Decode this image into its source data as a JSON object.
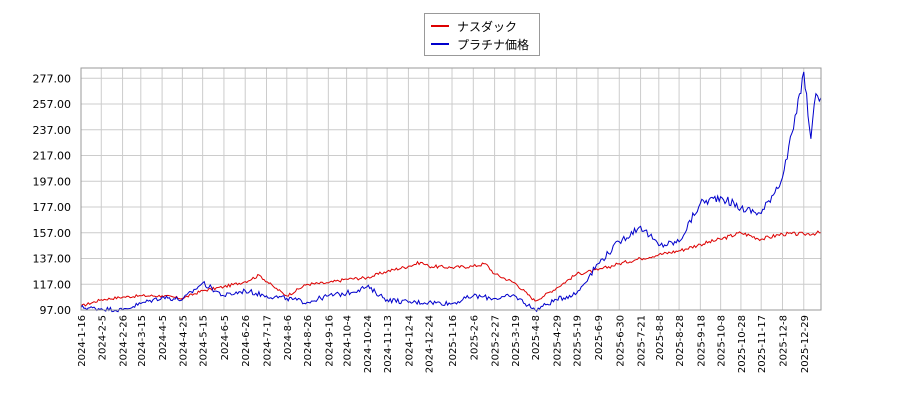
{
  "chart_data": {
    "type": "line",
    "y_ticks": [
      "97.00",
      "117.00",
      "137.00",
      "157.00",
      "177.00",
      "197.00",
      "217.00",
      "237.00",
      "257.00",
      "277.00"
    ],
    "ylim": [
      97,
      285
    ],
    "x_ticks": [
      "2024-1-16",
      "2024-2-5",
      "2024-2-26",
      "2024-3-15",
      "2024-4-5",
      "2024-4-25",
      "2024-5-15",
      "2024-6-5",
      "2024-6-26",
      "2024-7-17",
      "2024-8-6",
      "2024-8-26",
      "2024-9-16",
      "2024-10-4",
      "2024-10-24",
      "2024-11-13",
      "2024-12-4",
      "2024-12-24",
      "2025-1-16",
      "2025-2-6",
      "2025-2-27",
      "2025-3-19",
      "2025-4-8",
      "2025-4-29",
      "2025-5-19",
      "2025-6-9",
      "2025-6-30",
      "2025-7-21",
      "2025-8-8",
      "2025-8-28",
      "2025-9-18",
      "2025-10-8",
      "2025-10-28",
      "2025-11-17",
      "2025-12-8",
      "2025-12-29"
    ],
    "x_range": [
      "2024-1-16",
      "2026-1-15"
    ],
    "grid": true,
    "legend_position": "top-center",
    "series": [
      {
        "name": "ナスダック",
        "color": "#dd0000",
        "points": [
          [
            "2024-1-16",
            100
          ],
          [
            "2024-2-5",
            105
          ],
          [
            "2024-2-26",
            107
          ],
          [
            "2024-3-15",
            108
          ],
          [
            "2024-4-5",
            108
          ],
          [
            "2024-4-25",
            106
          ],
          [
            "2024-5-15",
            112
          ],
          [
            "2024-6-5",
            115
          ],
          [
            "2024-6-26",
            119
          ],
          [
            "2024-7-10",
            124
          ],
          [
            "2024-7-24",
            115
          ],
          [
            "2024-8-6",
            108
          ],
          [
            "2024-8-26",
            117
          ],
          [
            "2024-9-16",
            118
          ],
          [
            "2024-10-4",
            121
          ],
          [
            "2024-10-24",
            122
          ],
          [
            "2024-11-13",
            127
          ],
          [
            "2024-12-4",
            131
          ],
          [
            "2024-12-16",
            134
          ],
          [
            "2024-12-24",
            131
          ],
          [
            "2025-1-16",
            130
          ],
          [
            "2025-2-6",
            131
          ],
          [
            "2025-2-18",
            133
          ],
          [
            "2025-2-27",
            125
          ],
          [
            "2025-3-19",
            118
          ],
          [
            "2025-4-8",
            104
          ],
          [
            "2025-4-29",
            114
          ],
          [
            "2025-5-19",
            125
          ],
          [
            "2025-6-9",
            128
          ],
          [
            "2025-6-30",
            133
          ],
          [
            "2025-7-21",
            137
          ],
          [
            "2025-8-8",
            140
          ],
          [
            "2025-8-28",
            143
          ],
          [
            "2025-9-18",
            148
          ],
          [
            "2025-10-8",
            152
          ],
          [
            "2025-10-28",
            157
          ],
          [
            "2025-11-17",
            152
          ],
          [
            "2025-12-8",
            156
          ],
          [
            "2025-12-29",
            156
          ],
          [
            "2026-1-15",
            157
          ]
        ]
      },
      {
        "name": "プラチナ価格",
        "color": "#0000cc",
        "points": [
          [
            "2024-1-16",
            99
          ],
          [
            "2024-2-5",
            98
          ],
          [
            "2024-2-26",
            97
          ],
          [
            "2024-3-15",
            102
          ],
          [
            "2024-4-5",
            107
          ],
          [
            "2024-4-25",
            105
          ],
          [
            "2024-5-15",
            118
          ],
          [
            "2024-6-5",
            108
          ],
          [
            "2024-6-26",
            112
          ],
          [
            "2024-7-17",
            108
          ],
          [
            "2024-8-6",
            106
          ],
          [
            "2024-8-26",
            103
          ],
          [
            "2024-9-16",
            108
          ],
          [
            "2024-10-4",
            110
          ],
          [
            "2024-10-24",
            115
          ],
          [
            "2024-11-13",
            105
          ],
          [
            "2024-12-4",
            103
          ],
          [
            "2024-12-24",
            103
          ],
          [
            "2025-1-16",
            102
          ],
          [
            "2025-2-6",
            108
          ],
          [
            "2025-2-27",
            106
          ],
          [
            "2025-3-19",
            108
          ],
          [
            "2025-4-8",
            97
          ],
          [
            "2025-4-29",
            105
          ],
          [
            "2025-5-19",
            110
          ],
          [
            "2025-6-9",
            133
          ],
          [
            "2025-6-30",
            150
          ],
          [
            "2025-7-21",
            162
          ],
          [
            "2025-8-8",
            147
          ],
          [
            "2025-8-28",
            150
          ],
          [
            "2025-9-18",
            180
          ],
          [
            "2025-10-8",
            185
          ],
          [
            "2025-10-28",
            176
          ],
          [
            "2025-11-17",
            172
          ],
          [
            "2025-12-8",
            200
          ],
          [
            "2025-12-22",
            250
          ],
          [
            "2025-12-29",
            282
          ],
          [
            "2026-1-5",
            230
          ],
          [
            "2026-1-10",
            265
          ],
          [
            "2026-1-15",
            262
          ]
        ]
      }
    ]
  }
}
